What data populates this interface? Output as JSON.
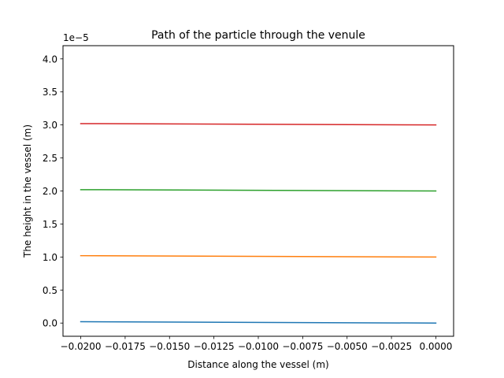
{
  "chart_data": {
    "type": "line",
    "title": "Path of the particle through the venule",
    "xlabel": "Distance along the vessel (m)",
    "ylabel": "The height in the vessel (m)",
    "y_offset_label": "1e−5",
    "xlim": [
      -0.021,
      0.001
    ],
    "ylim": [
      -0.2,
      4.2
    ],
    "y_scale_factor": 1e-05,
    "x_ticks": [
      -0.02,
      -0.0175,
      -0.015,
      -0.0125,
      -0.01,
      -0.0075,
      -0.005,
      -0.0025,
      0.0
    ],
    "x_tick_labels": [
      "−0.0200",
      "−0.0175",
      "−0.0150",
      "−0.0125",
      "−0.0100",
      "−0.0075",
      "−0.0050",
      "−0.0025",
      "0.0000"
    ],
    "y_ticks": [
      0.0,
      0.5,
      1.0,
      1.5,
      2.0,
      2.5,
      3.0,
      3.5,
      4.0
    ],
    "y_tick_labels": [
      "0.0",
      "0.5",
      "1.0",
      "1.5",
      "2.0",
      "2.5",
      "3.0",
      "3.5",
      "4.0"
    ],
    "grid": false,
    "series": [
      {
        "color": "#1f77b4",
        "x": [
          -0.02,
          0.0
        ],
        "y": [
          0.02,
          0.0
        ]
      },
      {
        "color": "#ff7f0e",
        "x": [
          -0.02,
          0.0
        ],
        "y": [
          1.02,
          1.0
        ]
      },
      {
        "color": "#2ca02c",
        "x": [
          -0.02,
          0.0
        ],
        "y": [
          2.02,
          2.0
        ]
      },
      {
        "color": "#d62728",
        "x": [
          -0.02,
          0.0
        ],
        "y": [
          3.02,
          3.0
        ]
      }
    ]
  }
}
